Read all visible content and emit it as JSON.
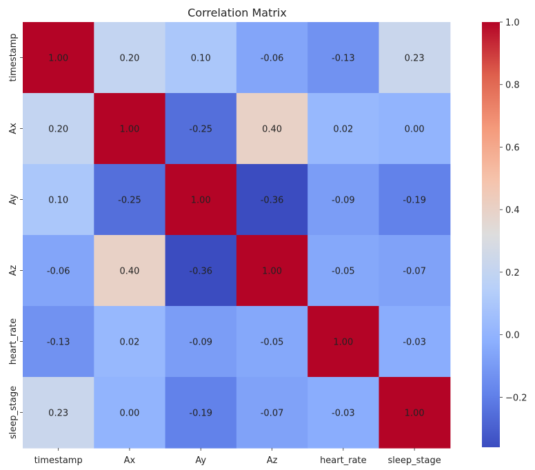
{
  "chart_data": {
    "type": "heatmap",
    "title": "Correlation Matrix",
    "xlabel": "",
    "ylabel": "",
    "categories": [
      "timestamp",
      "Ax",
      "Ay",
      "Az",
      "heart_rate",
      "sleep_stage"
    ],
    "matrix": [
      [
        1.0,
        0.2,
        0.1,
        -0.06,
        -0.13,
        0.23
      ],
      [
        0.2,
        1.0,
        -0.25,
        0.4,
        0.02,
        0.0
      ],
      [
        0.1,
        -0.25,
        1.0,
        -0.36,
        -0.09,
        -0.19
      ],
      [
        -0.06,
        0.4,
        -0.36,
        1.0,
        -0.05,
        -0.07
      ],
      [
        -0.13,
        0.02,
        -0.09,
        -0.05,
        1.0,
        -0.03
      ],
      [
        0.23,
        0.0,
        -0.19,
        -0.07,
        -0.03,
        1.0
      ]
    ],
    "value_format": "0.00",
    "colormap": "coolwarm",
    "colorbar": {
      "vmin": -0.36,
      "vmax": 1.0,
      "ticks": [
        -0.2,
        0.0,
        0.2,
        0.4,
        0.6,
        0.8,
        1.0
      ],
      "tick_labels": [
        "−0.2",
        "0.0",
        "0.2",
        "0.4",
        "0.6",
        "0.8",
        "1.0"
      ]
    },
    "grid": false
  }
}
